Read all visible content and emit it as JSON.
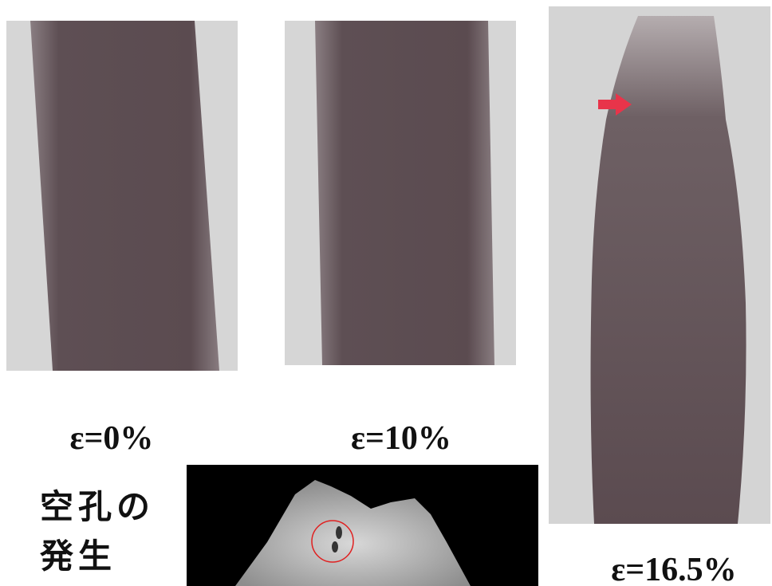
{
  "panels": [
    {
      "label": "ε=0%"
    },
    {
      "label": "ε=10%"
    },
    {
      "label": "ε=16.5%"
    }
  ],
  "inset": {
    "caption_lines": [
      "空孔の",
      "発生"
    ]
  }
}
